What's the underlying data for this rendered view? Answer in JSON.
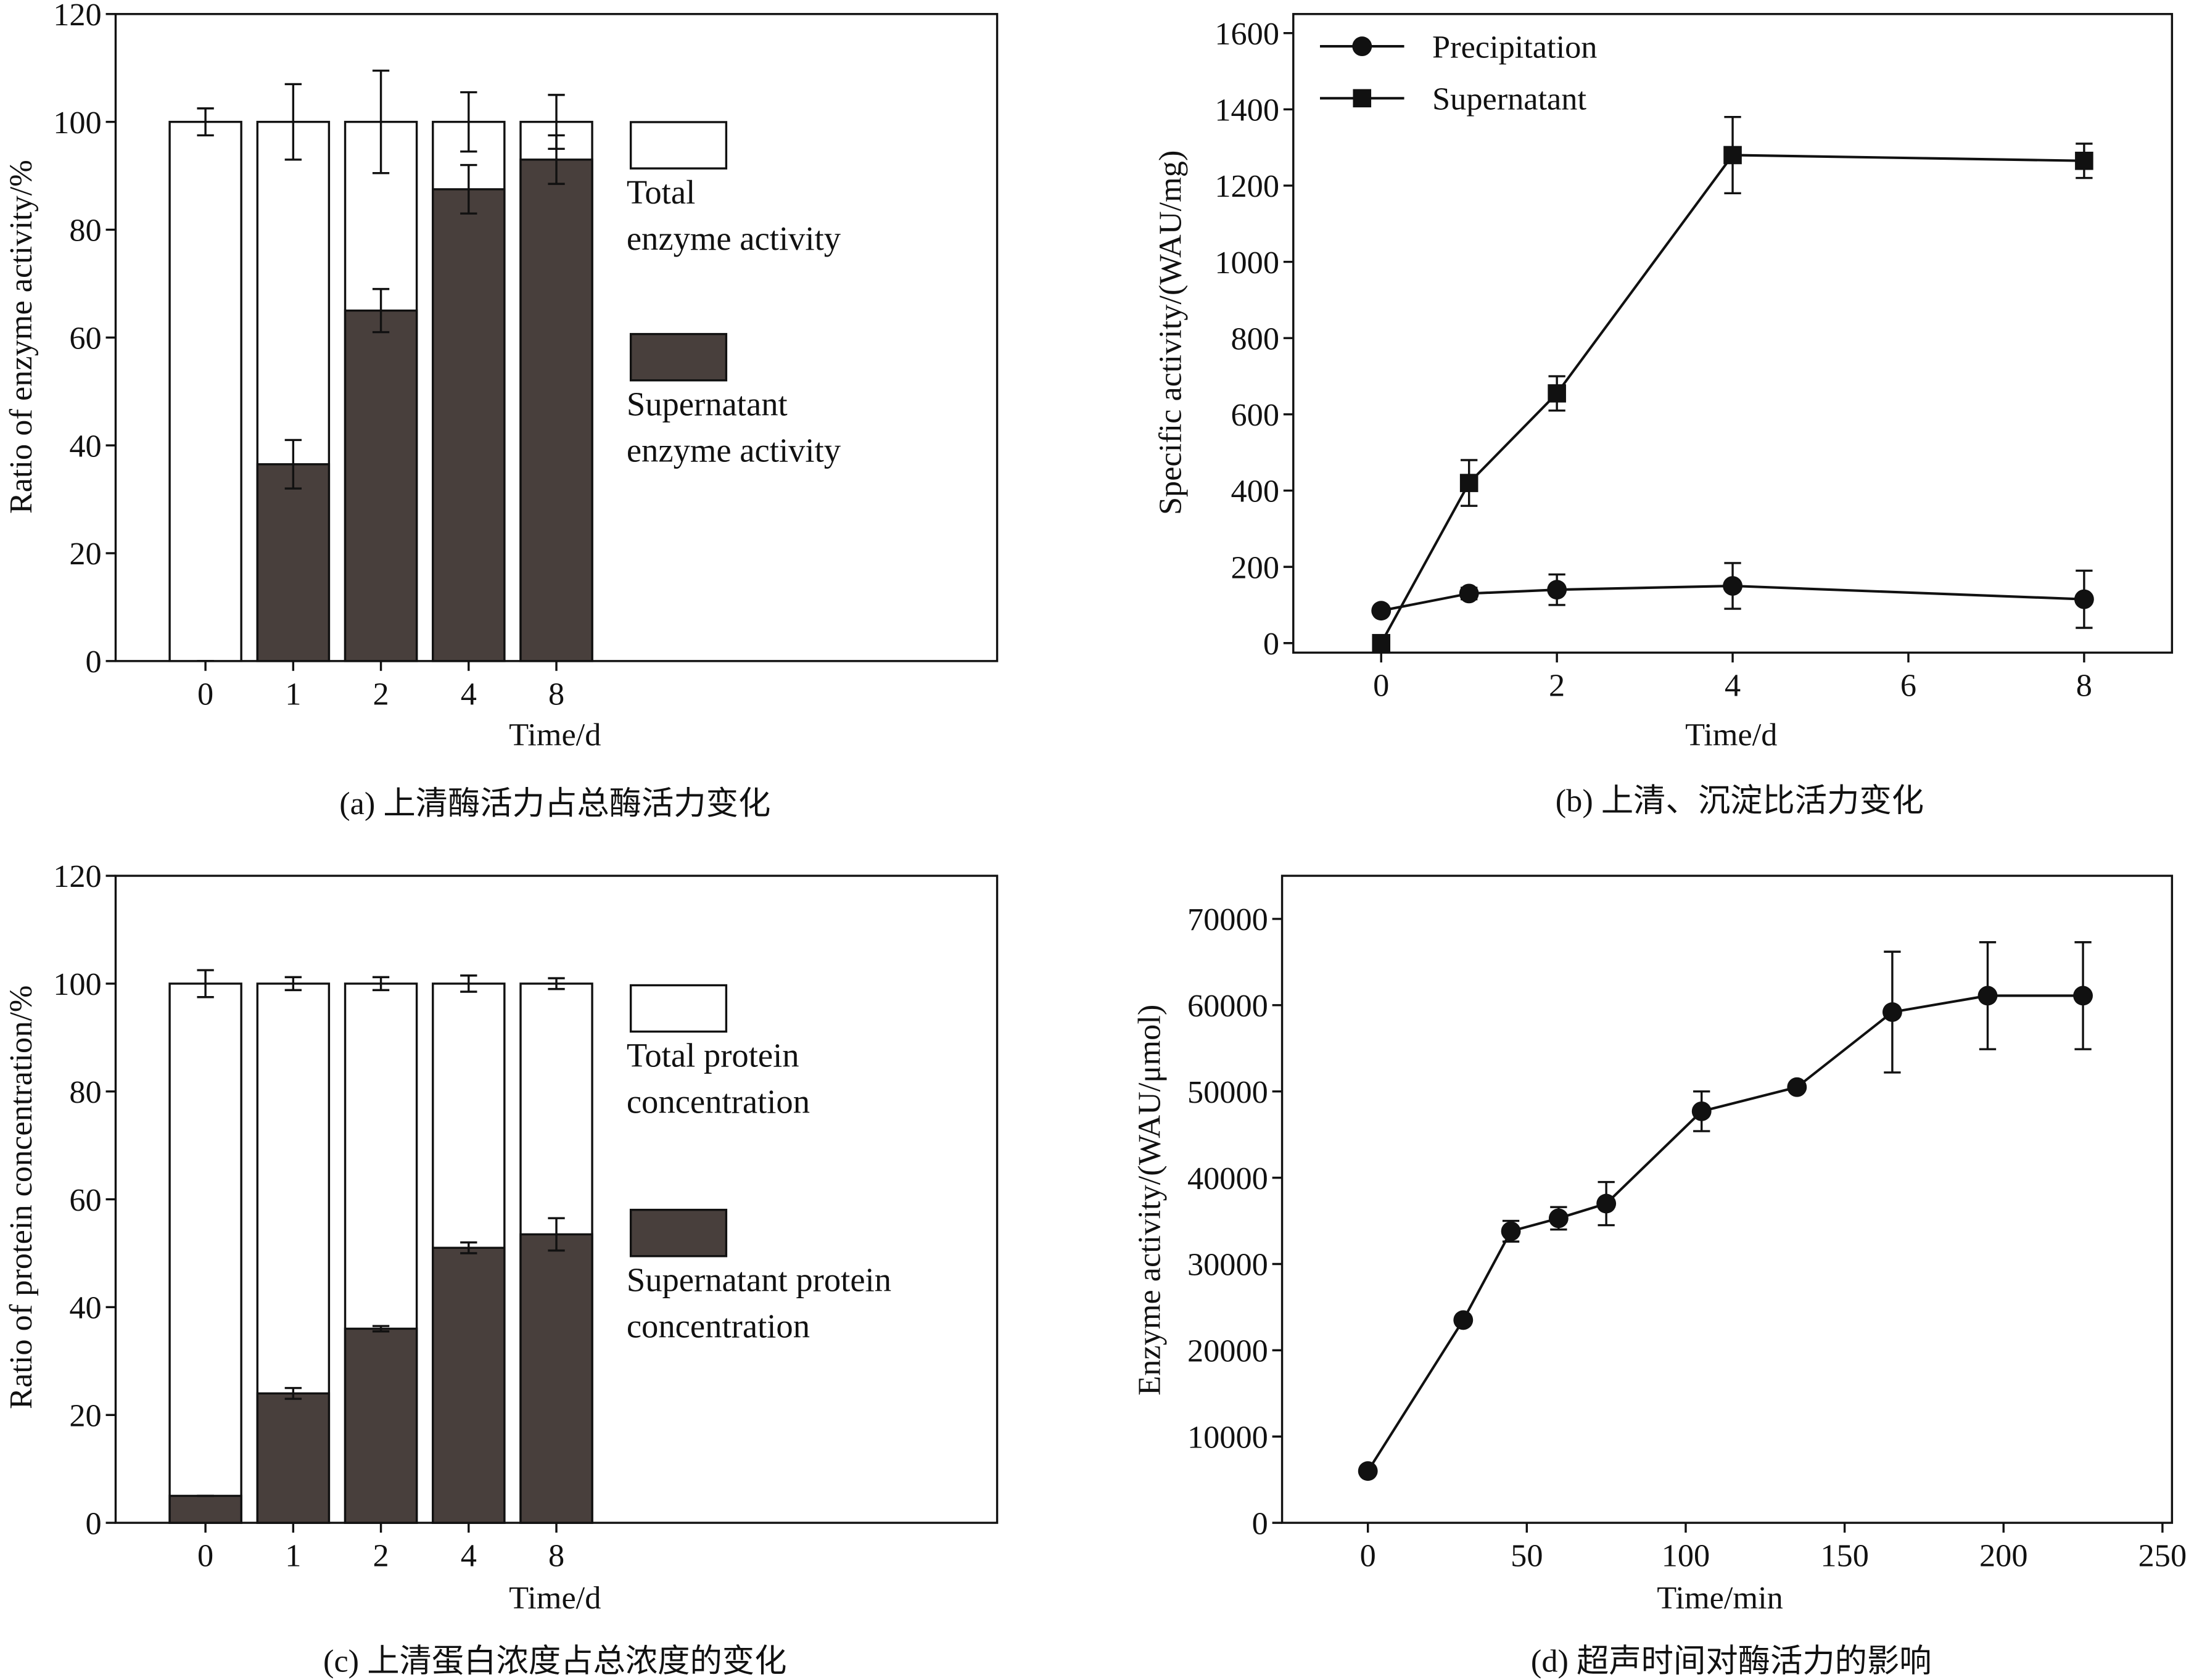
{
  "chart_data": [
    {
      "type": "bar",
      "caption": "(a) 上清酶活力占总酶活力变化",
      "xlabel": "Time/d",
      "ylabel": "Ratio of enzyme activity/%",
      "categories": [
        "0",
        "1",
        "2",
        "4",
        "8"
      ],
      "series": [
        {
          "name": "Total\nenzyme activity",
          "color": "#ffffff",
          "values": [
            100,
            100,
            100,
            100,
            100
          ],
          "errors": [
            2.5,
            7,
            9.5,
            5.5,
            5
          ]
        },
        {
          "name": "Supernatant\nenzyme activity",
          "color": "#483f3c",
          "values": [
            0,
            36.5,
            65,
            87.5,
            93
          ],
          "errors": [
            0,
            4.5,
            4,
            4.5,
            4.5
          ]
        }
      ],
      "ylim": [
        0,
        120
      ],
      "yticks": [
        0,
        20,
        40,
        60,
        80,
        100,
        120
      ]
    },
    {
      "type": "line",
      "caption": "(b) 上清、沉淀比活力变化",
      "xlabel": "Time/d",
      "ylabel": "Specific activity/(WAU/mg)",
      "x": [
        0,
        1,
        2,
        4,
        8
      ],
      "series": [
        {
          "name": "Precipitation",
          "color": "#111111",
          "marker": "circle",
          "values": [
            85,
            130,
            140,
            150,
            115
          ],
          "errors": [
            0,
            15,
            40,
            60,
            75
          ]
        },
        {
          "name": "Supernatant",
          "color": "#111111",
          "marker": "square",
          "values": [
            0,
            420,
            655,
            1280,
            1265
          ],
          "errors": [
            0,
            60,
            45,
            100,
            45
          ]
        }
      ],
      "xlim": [
        -1,
        9
      ],
      "xticks": [
        0,
        2,
        4,
        6,
        8
      ],
      "ylim": [
        -25,
        1650
      ],
      "yticks": [
        0,
        200,
        400,
        600,
        800,
        1000,
        1200,
        1400,
        1600
      ]
    },
    {
      "type": "bar",
      "caption": "(c) 上清蛋白浓度占总浓度的变化",
      "xlabel": "Time/d",
      "ylabel": "Ratio of protein concentration/%",
      "categories": [
        "0",
        "1",
        "2",
        "4",
        "8"
      ],
      "series": [
        {
          "name": "Total protein\nconcentration",
          "color": "#ffffff",
          "values": [
            100,
            100,
            100,
            100,
            100
          ],
          "errors": [
            2.5,
            1.2,
            1.2,
            1.5,
            1
          ]
        },
        {
          "name": "Supernatant protein\nconcentration",
          "color": "#483f3c",
          "values": [
            5,
            24,
            36,
            51,
            53.5
          ],
          "errors": [
            0,
            1,
            0.5,
            1,
            3
          ]
        }
      ],
      "ylim": [
        0,
        120
      ],
      "yticks": [
        0,
        20,
        40,
        60,
        80,
        100,
        120
      ]
    },
    {
      "type": "line",
      "caption": "(d) 超声时间对酶活力的影响",
      "xlabel": "Time/min",
      "ylabel": "Enzyme activity/(WAU/μmol)",
      "x": [
        0,
        30,
        45,
        60,
        75,
        105,
        135,
        165,
        195,
        225
      ],
      "series": [
        {
          "color": "#111111",
          "marker": "circle",
          "values": [
            6000,
            23500,
            33800,
            35300,
            37000,
            47700,
            50500,
            59200,
            61100,
            61100
          ],
          "errors": [
            0,
            0,
            1200,
            1300,
            2500,
            2300,
            0,
            7000,
            6200,
            6200
          ]
        }
      ],
      "xlim": [
        -27,
        253
      ],
      "xticks": [
        0,
        50,
        100,
        150,
        200,
        250
      ],
      "ylim": [
        0,
        75000
      ],
      "yticks": [
        0,
        10000,
        20000,
        30000,
        40000,
        50000,
        60000,
        70000
      ]
    }
  ]
}
